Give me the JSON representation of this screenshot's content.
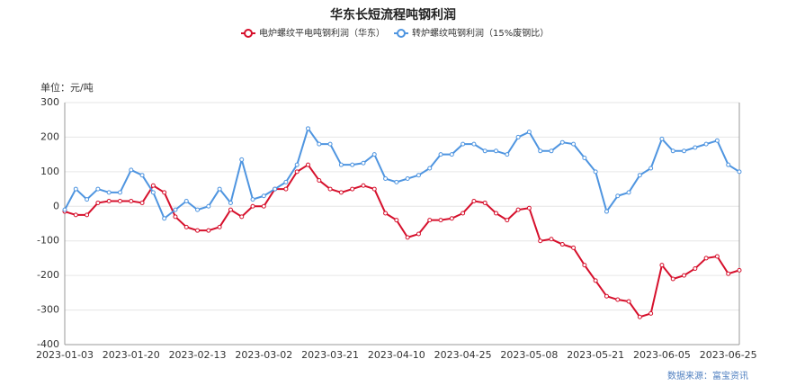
{
  "chart_data": {
    "type": "line",
    "title": "华东长短流程吨钢利润",
    "y_label": "单位：元/吨",
    "source": "数据来源：富宝资讯",
    "categories": [
      "2023-01-03",
      null,
      null,
      null,
      null,
      null,
      "2023-01-20",
      null,
      null,
      null,
      null,
      null,
      "2023-02-13",
      null,
      null,
      null,
      null,
      null,
      "2023-03-02",
      null,
      null,
      null,
      null,
      null,
      "2023-03-21",
      null,
      null,
      null,
      null,
      null,
      "2023-04-10",
      null,
      null,
      null,
      null,
      null,
      "2023-04-25",
      null,
      null,
      null,
      null,
      null,
      "2023-05-08",
      null,
      null,
      null,
      null,
      null,
      "2023-05-21",
      null,
      null,
      null,
      null,
      null,
      "2023-06-05",
      null,
      null,
      null,
      null,
      null,
      "2023-06-25",
      null
    ],
    "series": [
      {
        "name": "电炉螺纹平电吨钢利润（华东）",
        "color": "#d6102c",
        "values": [
          -15,
          -25,
          -25,
          10,
          15,
          15,
          15,
          10,
          60,
          40,
          -30,
          -60,
          -70,
          -70,
          -60,
          -10,
          -30,
          0,
          0,
          50,
          50,
          100,
          120,
          75,
          50,
          40,
          50,
          60,
          50,
          -20,
          -40,
          -90,
          -80,
          -40,
          -40,
          -35,
          -20,
          15,
          10,
          -20,
          -40,
          -10,
          -5,
          -100,
          -95,
          -110,
          -120,
          -170,
          -215,
          -260,
          -270,
          -275,
          -320,
          -310,
          -170,
          -210,
          -200,
          -180,
          -150,
          -145,
          -195,
          -185
        ]
      },
      {
        "name": "转炉螺纹吨钢利润（15%废钢比）",
        "color": "#4f95e0",
        "values": [
          -10,
          50,
          20,
          50,
          40,
          40,
          105,
          90,
          40,
          -35,
          -10,
          15,
          -10,
          0,
          50,
          10,
          135,
          20,
          30,
          50,
          70,
          120,
          225,
          180,
          180,
          120,
          120,
          125,
          150,
          80,
          70,
          80,
          90,
          110,
          150,
          150,
          180,
          180,
          160,
          160,
          150,
          200,
          215,
          160,
          160,
          185,
          180,
          140,
          100,
          -15,
          30,
          40,
          90,
          110,
          195,
          160,
          160,
          170,
          180,
          190,
          120,
          100
        ]
      }
    ],
    "ylim": [
      -400,
      300
    ],
    "yticks": [
      -400,
      -300,
      -200,
      -100,
      0,
      100,
      200,
      300
    ],
    "grid": true
  }
}
